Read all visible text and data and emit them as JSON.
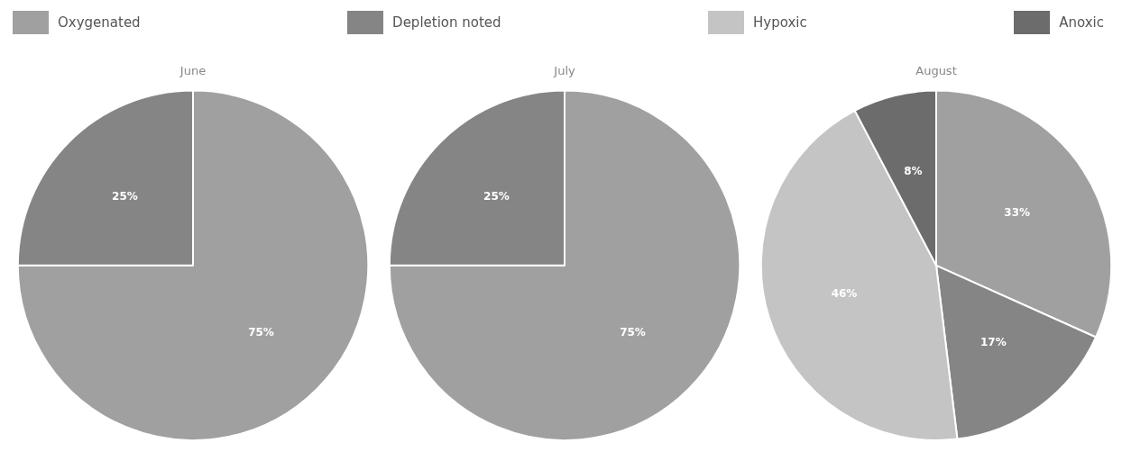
{
  "chart_data": [
    {
      "type": "pie",
      "title": "June",
      "categories": [
        "Oxygenated",
        "Depletion noted",
        "Hypoxic",
        "Anoxic"
      ],
      "values": [
        75,
        25,
        0,
        0
      ],
      "colors": [
        "#a0a0a0",
        "#858585",
        "#c4c4c4",
        "#6c6c6c"
      ],
      "value_labels": [
        "75%",
        "25%",
        null,
        null
      ],
      "legend": "top"
    },
    {
      "type": "pie",
      "title": "July",
      "categories": [
        null,
        null,
        null,
        null
      ],
      "values": [
        75,
        25,
        0,
        0
      ],
      "colors": [
        "#a0a0a0",
        "#858585",
        "#c4c4c4",
        "#6c6c6c"
      ],
      "value_labels": [
        "75%",
        "25%",
        null,
        null
      ]
    },
    {
      "type": "pie",
      "title": "August",
      "categories": [
        null,
        null,
        null,
        null
      ],
      "values": [
        33,
        17,
        46,
        8
      ],
      "colors": [
        "#a0a0a0",
        "#858585",
        "#c4c4c4",
        "#6c6c6c"
      ],
      "value_labels": [
        "33%",
        "17%",
        "46%",
        "8%"
      ]
    }
  ]
}
